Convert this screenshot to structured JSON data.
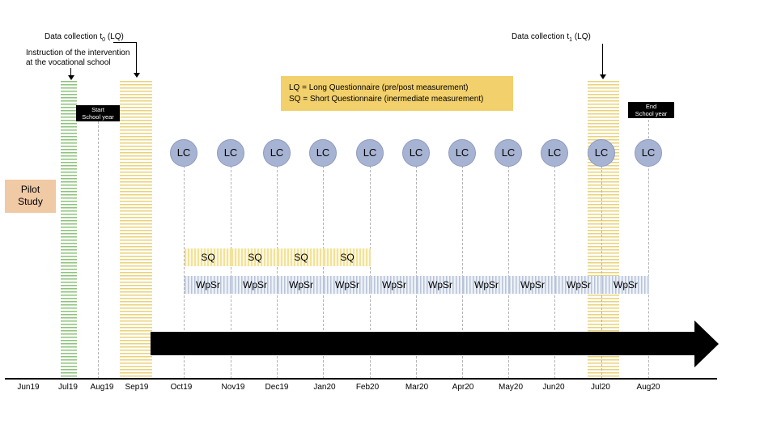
{
  "notes": {
    "data_collection_t0_prefix": "Data collection t",
    "data_collection_t0_sub": "0",
    "data_collection_t0_suffix": " (LQ)",
    "instruction_line1": "Instruction of the intervention",
    "instruction_line2": "at the vocational school",
    "data_collection_t1_prefix": "Data collection t",
    "data_collection_t1_sub": "1",
    "data_collection_t1_suffix": " (LQ)"
  },
  "legend": {
    "lq": "LQ = Long Questionnaire (pre/post measurement)",
    "sq": "SQ = Short Questionnaire (inermediate measurement)"
  },
  "tags": {
    "start_line1": "Start",
    "start_line2": "School year",
    "end_line1": "End",
    "end_line2": "School year"
  },
  "pilot": {
    "line1": "Pilot",
    "line2": "Study"
  },
  "lc_label": "LC",
  "sq_label": "SQ",
  "wpsr_label": "WpSr",
  "months": [
    "Jun19",
    "Jul19",
    "Aug19",
    "Sep19",
    "Oct19",
    "Nov19",
    "Dec19",
    "Jan20",
    "Feb20",
    "Mar20",
    "Apr20",
    "May20",
    "Jun20",
    "Jul20",
    "Aug20"
  ],
  "colors": {
    "lc_circle": "#a7b3d2",
    "pilot_box": "#f0c9a5",
    "legend_box": "#f2d06b",
    "green_stripe": "#8dc27a",
    "yellow_stripe": "#e8d27a"
  }
}
